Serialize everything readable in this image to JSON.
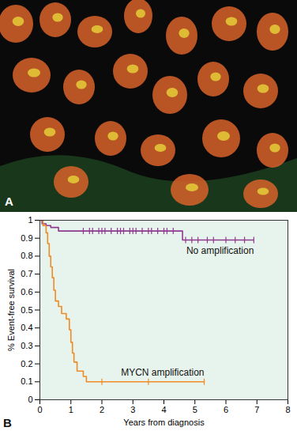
{
  "image_panel": {
    "label": "A"
  },
  "chart_data": {
    "type": "line",
    "panel_label": "B",
    "x_label": "Years from diagnosis",
    "y_label": "% Event-free survival",
    "xlim": [
      0,
      8
    ],
    "xticks": [
      0,
      1,
      2,
      3,
      4,
      5,
      6,
      7,
      8
    ],
    "ylim": [
      0,
      1
    ],
    "yticks": [
      0,
      0.1,
      0.2,
      0.3,
      0.4,
      0.5,
      0.6,
      0.7,
      0.8,
      0.9,
      1
    ],
    "grid": false,
    "line_style": "step",
    "marker": "tick",
    "series": [
      {
        "name": "No amplification",
        "color": "#8e3a8e",
        "x": [
          0,
          0.07,
          0.2,
          0.35,
          0.6,
          4.6,
          6.9
        ],
        "values": [
          1,
          0.98,
          0.97,
          0.96,
          0.94,
          0.89,
          0.89
        ],
        "censored": [
          1.4,
          1.6,
          1.7,
          1.9,
          2.0,
          2.1,
          2.3,
          2.5,
          2.6,
          2.7,
          2.9,
          3.0,
          3.1,
          3.3,
          3.5,
          3.6,
          3.8,
          4.0,
          4.1,
          4.3,
          4.7,
          4.9,
          5.1,
          5.4,
          5.6,
          6.0,
          6.3,
          6.6,
          6.9
        ]
      },
      {
        "name": "MYCN amplification",
        "color": "#f08a24",
        "x": [
          0,
          0.1,
          0.2,
          0.25,
          0.3,
          0.35,
          0.4,
          0.45,
          0.5,
          0.6,
          0.7,
          0.85,
          0.95,
          1.0,
          1.05,
          1.1,
          1.2,
          1.4,
          1.5,
          5.3
        ],
        "values": [
          1,
          0.97,
          0.93,
          0.87,
          0.8,
          0.74,
          0.68,
          0.61,
          0.55,
          0.52,
          0.48,
          0.45,
          0.39,
          0.32,
          0.26,
          0.21,
          0.16,
          0.13,
          0.1,
          0.1
        ],
        "censored": [
          2.0,
          3.5,
          5.3
        ]
      }
    ]
  }
}
